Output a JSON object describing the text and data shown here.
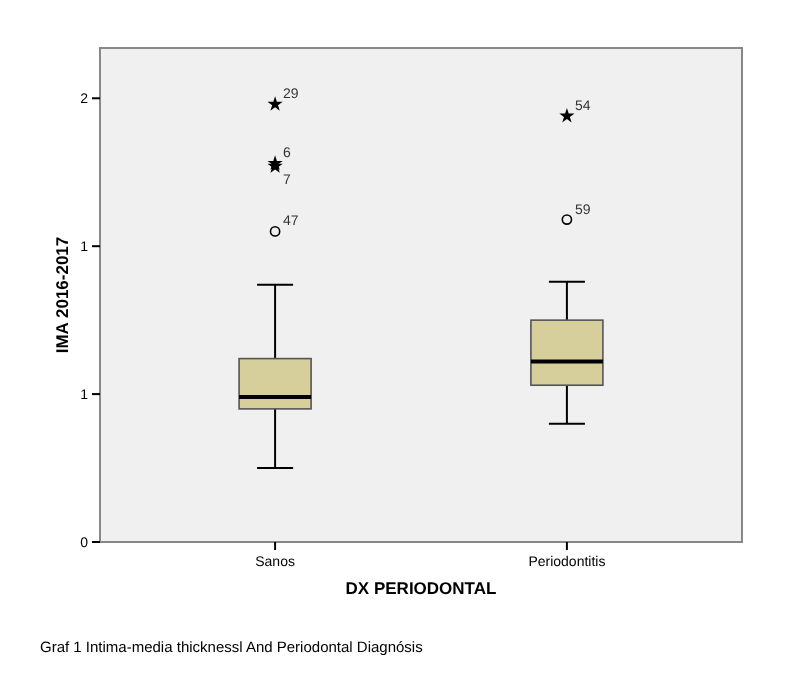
{
  "chart_data": {
    "type": "box",
    "categories": [
      "Sanos",
      "Periodontitis"
    ],
    "xlabel": "DX PERIODONTAL",
    "ylabel": "IMA 2016-2017",
    "ylim": [
      0,
      1.67
    ],
    "yticks": [
      {
        "value": 0,
        "label": "0"
      },
      {
        "value": 0.5,
        "label": "1"
      },
      {
        "value": 1,
        "label": "1"
      },
      {
        "value": 1.5,
        "label": "2"
      }
    ],
    "color": "#d6cf9c",
    "grid": false,
    "boxes": [
      {
        "low": 0.25,
        "q1": 0.45,
        "median": 0.49,
        "q3": 0.62,
        "high": 0.87,
        "outliers": [
          1.48,
          1.28,
          1.27,
          1.05
        ]
      },
      {
        "low": 0.4,
        "q1": 0.53,
        "median": 0.61,
        "q3": 0.75,
        "high": 0.88,
        "outliers": [
          1.44,
          1.09
        ]
      }
    ],
    "annotations": [
      "29",
      "6",
      "7",
      "47",
      "54",
      "59",
      "Graf 1 Intima-media thicknessl And Periodontal Diagnósis"
    ]
  }
}
